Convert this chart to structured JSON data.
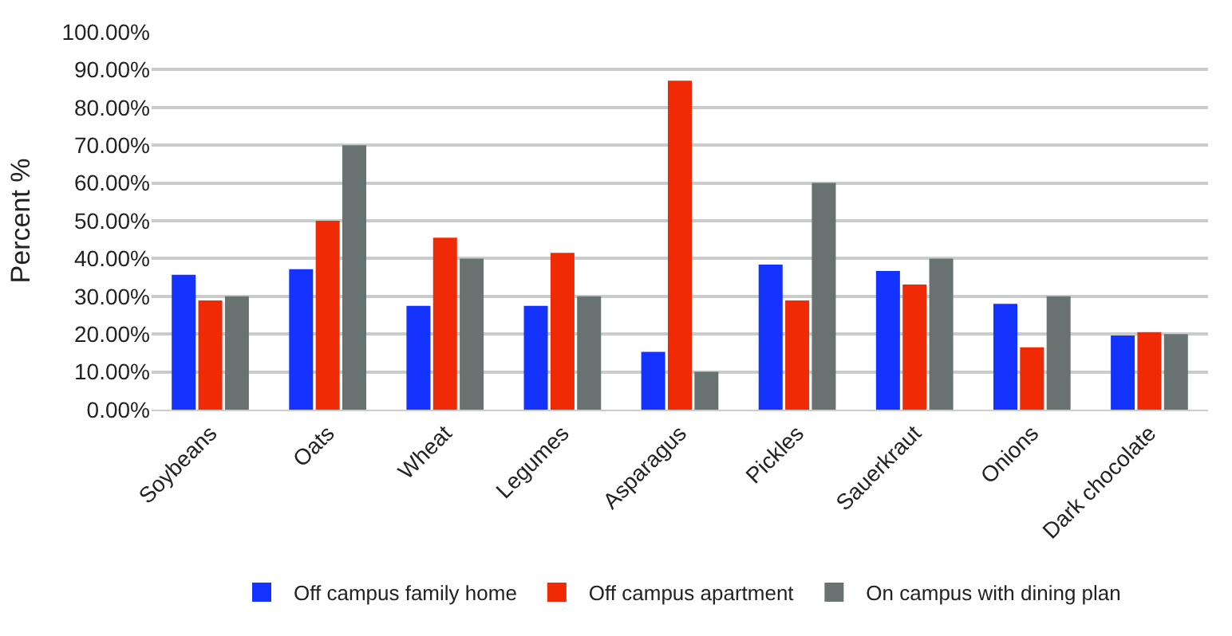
{
  "chart_data": {
    "type": "bar",
    "ylabel": "Percent %",
    "categories": [
      "Soybeans",
      "Oats",
      "Wheat",
      "Legumes",
      "Asparagus",
      "Pickles",
      "Sauerkraut",
      "Onions",
      "Dark chocolate"
    ],
    "series": [
      {
        "name": "Off campus family home",
        "color": "#1433ff",
        "values": [
          35.7,
          37.2,
          27.5,
          27.5,
          15.3,
          38.4,
          36.7,
          28.0,
          19.6
        ]
      },
      {
        "name": "Off campus apartment",
        "color": "#f02a05",
        "values": [
          28.9,
          50.0,
          45.5,
          41.5,
          87.1,
          28.9,
          33.1,
          16.5,
          20.5
        ]
      },
      {
        "name": "On campus with dining plan",
        "color": "#677271",
        "values": [
          30,
          70,
          40,
          30,
          10,
          60,
          40,
          30,
          20
        ]
      }
    ],
    "ylim": [
      0,
      100
    ],
    "yticks": [
      {
        "value": 0,
        "label": "0.00%"
      },
      {
        "value": 10,
        "label": "10.00%"
      },
      {
        "value": 20,
        "label": "20.00%"
      },
      {
        "value": 30,
        "label": "30.00%"
      },
      {
        "value": 40,
        "label": "40.00%"
      },
      {
        "value": 50,
        "label": "50.00%"
      },
      {
        "value": 60,
        "label": "60.00%"
      },
      {
        "value": 70,
        "label": "70.00%"
      },
      {
        "value": 80,
        "label": "80.00%"
      },
      {
        "value": 90,
        "label": "90.00%"
      },
      {
        "value": 100,
        "label": "100.00%"
      }
    ],
    "grid": "y",
    "legend": "bottom"
  }
}
